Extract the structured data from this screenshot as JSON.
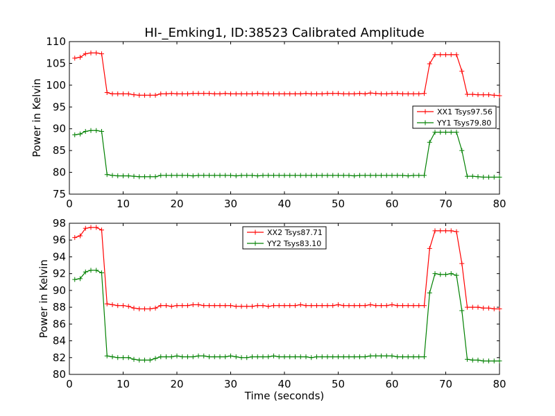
{
  "figure": {
    "title": "HI-_Emking1, ID:38523 Calibrated Amplitude"
  },
  "chart_data": [
    {
      "type": "line",
      "title": "HI-_Emking1, ID:38523 Calibrated Amplitude",
      "xlabel": "",
      "ylabel": "Power in Kelvin",
      "xlim": [
        0,
        80
      ],
      "ylim": [
        75,
        110
      ],
      "xticks": [
        0,
        10,
        20,
        30,
        40,
        50,
        60,
        70,
        80
      ],
      "yticks": [
        75,
        80,
        85,
        90,
        95,
        100,
        105,
        110
      ],
      "grid": false,
      "legend": "right",
      "x": [
        1,
        2,
        3,
        4,
        5,
        6,
        7,
        8,
        9,
        10,
        11,
        12,
        13,
        14,
        15,
        16,
        17,
        18,
        19,
        20,
        21,
        22,
        23,
        24,
        25,
        26,
        27,
        28,
        29,
        30,
        31,
        32,
        33,
        34,
        35,
        36,
        37,
        38,
        39,
        40,
        41,
        42,
        43,
        44,
        45,
        46,
        47,
        48,
        49,
        50,
        51,
        52,
        53,
        54,
        55,
        56,
        57,
        58,
        59,
        60,
        61,
        62,
        63,
        64,
        65,
        66,
        67,
        68,
        69,
        70,
        71,
        72,
        73,
        74,
        75,
        76,
        77,
        78,
        79,
        80
      ],
      "series": [
        {
          "name": "XX1 Tsys97.56",
          "color": "#ff0000",
          "values": [
            106.2,
            106.4,
            107.2,
            107.4,
            107.4,
            107.2,
            98.3,
            98.0,
            98.0,
            98.0,
            98.0,
            97.8,
            97.7,
            97.7,
            97.7,
            97.7,
            98.0,
            98.0,
            98.1,
            98.0,
            98.0,
            98.0,
            98.1,
            98.1,
            98.1,
            98.1,
            98.0,
            98.0,
            98.1,
            98.0,
            98.0,
            98.0,
            98.0,
            98.0,
            98.1,
            98.0,
            98.0,
            98.0,
            98.0,
            98.0,
            98.0,
            98.0,
            98.0,
            98.1,
            98.0,
            98.0,
            98.0,
            98.1,
            98.1,
            98.1,
            98.0,
            98.0,
            98.0,
            98.1,
            98.0,
            98.2,
            98.1,
            98.0,
            98.0,
            98.1,
            98.1,
            98.0,
            98.0,
            98.0,
            98.0,
            98.1,
            104.9,
            107.0,
            107.0,
            107.0,
            107.0,
            107.0,
            103.2,
            97.9,
            97.9,
            97.8,
            97.8,
            97.8,
            97.7,
            97.6
          ]
        },
        {
          "name": "YY1 Tsys79.80",
          "color": "#008000",
          "values": [
            88.6,
            88.8,
            89.4,
            89.6,
            89.6,
            89.4,
            79.5,
            79.3,
            79.2,
            79.2,
            79.2,
            79.1,
            79.0,
            79.0,
            79.0,
            79.0,
            79.3,
            79.3,
            79.3,
            79.3,
            79.3,
            79.3,
            79.2,
            79.3,
            79.3,
            79.3,
            79.3,
            79.3,
            79.3,
            79.3,
            79.2,
            79.3,
            79.3,
            79.3,
            79.2,
            79.3,
            79.3,
            79.3,
            79.3,
            79.3,
            79.3,
            79.3,
            79.3,
            79.3,
            79.3,
            79.3,
            79.3,
            79.3,
            79.3,
            79.3,
            79.3,
            79.3,
            79.2,
            79.3,
            79.3,
            79.3,
            79.3,
            79.3,
            79.3,
            79.3,
            79.3,
            79.3,
            79.2,
            79.3,
            79.3,
            79.3,
            86.9,
            89.2,
            89.2,
            89.2,
            89.2,
            89.2,
            85.0,
            79.1,
            79.1,
            79.0,
            78.9,
            78.9,
            78.9,
            78.9
          ]
        }
      ]
    },
    {
      "type": "line",
      "title": "",
      "xlabel": "Time (seconds)",
      "ylabel": "Power in Kelvin",
      "xlim": [
        0,
        80
      ],
      "ylim": [
        80,
        98
      ],
      "xticks": [
        0,
        10,
        20,
        30,
        40,
        50,
        60,
        70,
        80
      ],
      "yticks": [
        80,
        82,
        84,
        86,
        88,
        90,
        92,
        94,
        96,
        98
      ],
      "grid": false,
      "legend": "top-center",
      "x": [
        1,
        2,
        3,
        4,
        5,
        6,
        7,
        8,
        9,
        10,
        11,
        12,
        13,
        14,
        15,
        16,
        17,
        18,
        19,
        20,
        21,
        22,
        23,
        24,
        25,
        26,
        27,
        28,
        29,
        30,
        31,
        32,
        33,
        34,
        35,
        36,
        37,
        38,
        39,
        40,
        41,
        42,
        43,
        44,
        45,
        46,
        47,
        48,
        49,
        50,
        51,
        52,
        53,
        54,
        55,
        56,
        57,
        58,
        59,
        60,
        61,
        62,
        63,
        64,
        65,
        66,
        67,
        68,
        69,
        70,
        71,
        72,
        73,
        74,
        75,
        76,
        77,
        78,
        79,
        80
      ],
      "series": [
        {
          "name": "XX2 Tsys87.71",
          "color": "#ff0000",
          "values": [
            96.3,
            96.5,
            97.4,
            97.5,
            97.5,
            97.2,
            88.4,
            88.3,
            88.2,
            88.2,
            88.1,
            87.9,
            87.8,
            87.8,
            87.8,
            87.9,
            88.2,
            88.2,
            88.1,
            88.2,
            88.2,
            88.2,
            88.3,
            88.3,
            88.2,
            88.2,
            88.2,
            88.2,
            88.2,
            88.2,
            88.1,
            88.1,
            88.1,
            88.1,
            88.2,
            88.2,
            88.1,
            88.2,
            88.2,
            88.2,
            88.2,
            88.2,
            88.3,
            88.2,
            88.2,
            88.2,
            88.2,
            88.2,
            88.2,
            88.3,
            88.2,
            88.2,
            88.2,
            88.2,
            88.2,
            88.3,
            88.2,
            88.2,
            88.2,
            88.3,
            88.2,
            88.2,
            88.2,
            88.2,
            88.2,
            88.2,
            95.0,
            97.1,
            97.1,
            97.1,
            97.1,
            97.0,
            93.2,
            88.0,
            88.0,
            88.0,
            87.9,
            87.9,
            87.8,
            87.8
          ]
        },
        {
          "name": "YY2 Tsys83.10",
          "color": "#008000",
          "values": [
            91.3,
            91.4,
            92.2,
            92.4,
            92.4,
            92.1,
            82.2,
            82.1,
            82.0,
            82.0,
            82.0,
            81.8,
            81.7,
            81.7,
            81.7,
            81.9,
            82.1,
            82.1,
            82.1,
            82.2,
            82.1,
            82.1,
            82.1,
            82.2,
            82.2,
            82.1,
            82.1,
            82.1,
            82.1,
            82.2,
            82.1,
            82.0,
            82.0,
            82.1,
            82.1,
            82.1,
            82.1,
            82.2,
            82.1,
            82.1,
            82.1,
            82.1,
            82.1,
            82.1,
            82.0,
            82.1,
            82.1,
            82.1,
            82.1,
            82.1,
            82.1,
            82.1,
            82.1,
            82.1,
            82.1,
            82.2,
            82.2,
            82.2,
            82.2,
            82.2,
            82.1,
            82.1,
            82.1,
            82.1,
            82.1,
            82.1,
            89.7,
            92.0,
            91.9,
            91.9,
            92.0,
            91.8,
            87.6,
            81.8,
            81.7,
            81.7,
            81.6,
            81.6,
            81.6,
            81.6
          ]
        }
      ]
    }
  ]
}
